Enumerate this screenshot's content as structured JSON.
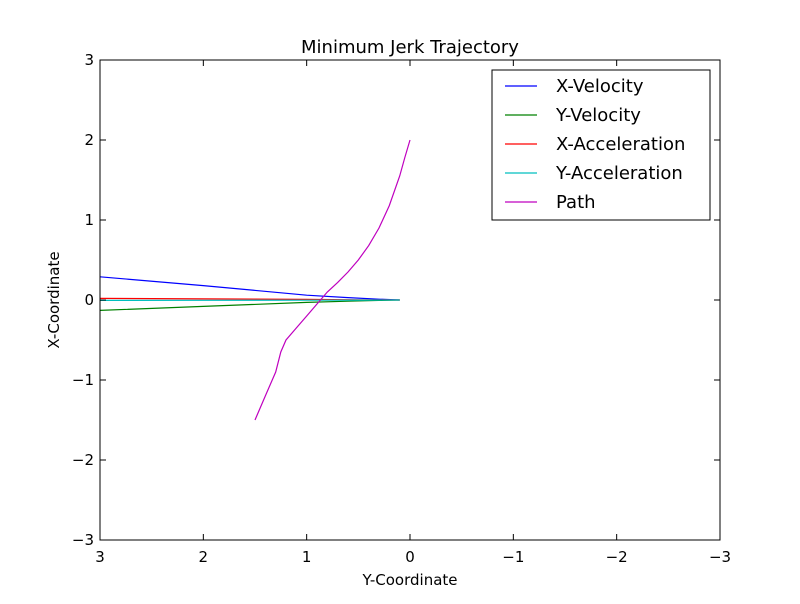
{
  "chart_data": {
    "type": "line",
    "title": "Minimum Jerk Trajectory",
    "xlabel": "Y-Coordinate",
    "ylabel": "X-Coordinate",
    "xlim": [
      3,
      -3
    ],
    "ylim": [
      -3,
      3
    ],
    "x_inverted": true,
    "xticks": [
      3,
      2,
      1,
      0,
      -1,
      -2,
      -3
    ],
    "xtick_labels": [
      "3",
      "2",
      "1",
      "0",
      "−1",
      "−2",
      "−3"
    ],
    "yticks": [
      3,
      2,
      1,
      0,
      -1,
      -2,
      -3
    ],
    "ytick_labels": [
      "3",
      "2",
      "1",
      "0",
      "−1",
      "−2",
      "−3"
    ],
    "grid": false,
    "legend_position": "top-right",
    "series": [
      {
        "name": "X-Velocity",
        "color": "#0000ff",
        "x": [
          3.0,
          2.0,
          1.0,
          0.6,
          0.3,
          0.1
        ],
        "y": [
          0.29,
          0.18,
          0.06,
          0.03,
          0.01,
          0.0
        ]
      },
      {
        "name": "Y-Velocity",
        "color": "#008000",
        "x": [
          3.0,
          2.0,
          1.0,
          0.6,
          0.3,
          0.1
        ],
        "y": [
          -0.13,
          -0.08,
          -0.03,
          -0.015,
          -0.005,
          0.0
        ]
      },
      {
        "name": "X-Acceleration",
        "color": "#ff0000",
        "x": [
          3.0,
          2.0,
          1.0,
          0.5,
          0.1
        ],
        "y": [
          0.02,
          0.014,
          0.007,
          0.003,
          0.0
        ]
      },
      {
        "name": "Y-Acceleration",
        "color": "#00bfbf",
        "x": [
          3.0,
          2.0,
          1.0,
          0.5,
          0.1
        ],
        "y": [
          -0.005,
          -0.004,
          -0.002,
          -0.001,
          0.0
        ]
      },
      {
        "name": "Path",
        "color": "#bf00bf",
        "x": [
          1.5,
          1.4,
          1.3,
          1.25,
          1.2,
          1.1,
          1.0,
          0.9,
          0.8,
          0.7,
          0.6,
          0.5,
          0.4,
          0.3,
          0.2,
          0.1,
          0.05,
          0.0
        ],
        "y": [
          -1.5,
          -1.2,
          -0.9,
          -0.65,
          -0.5,
          -0.35,
          -0.2,
          -0.05,
          0.1,
          0.22,
          0.35,
          0.5,
          0.68,
          0.9,
          1.18,
          1.55,
          1.78,
          2.0
        ]
      }
    ]
  }
}
